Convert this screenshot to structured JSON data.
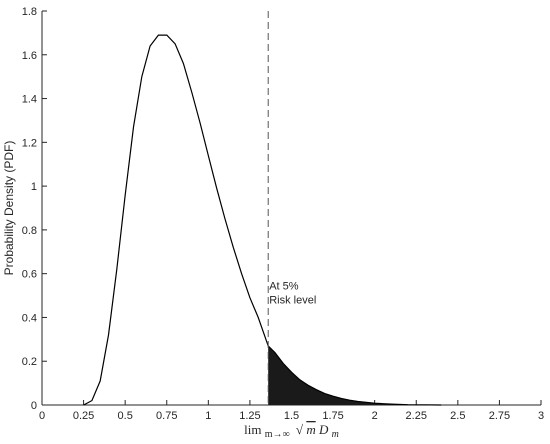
{
  "chart_data": {
    "type": "area",
    "title": "",
    "xlabel": "lim m→∞ √m D m",
    "xlabel_parts": {
      "lim": "lim",
      "sub": "m→∞",
      "sqrt": "√",
      "m": "m",
      "D": "D",
      "Dsub": "m"
    },
    "ylabel": "Probability Density (PDF)",
    "xlim": [
      0,
      3
    ],
    "ylim": [
      0,
      1.8
    ],
    "x_ticks": [
      "0",
      "0.25",
      "0.5",
      "0.75",
      "1",
      "1.25",
      "1.5",
      "1.75",
      "2",
      "2.25",
      "2.5",
      "2.75",
      "3"
    ],
    "y_ticks": [
      "0",
      "0.2",
      "0.4",
      "0.6",
      "0.8",
      "1",
      "1.2",
      "1.4",
      "1.6",
      "1.8"
    ],
    "grid": false,
    "series": [
      {
        "type": "line",
        "x": [
          0.3,
          0.35,
          0.4,
          0.45,
          0.5,
          0.55,
          0.6,
          0.65,
          0.7,
          0.75,
          0.8,
          0.85,
          0.9,
          0.95,
          1.0,
          1.05,
          1.1,
          1.15,
          1.2,
          1.25,
          1.3,
          1.36,
          1.4,
          1.45,
          1.5,
          1.55,
          1.6,
          1.65,
          1.7,
          1.75,
          1.8,
          1.85,
          1.9,
          2.0,
          2.1,
          2.2
        ],
        "y": [
          0.02,
          0.11,
          0.32,
          0.62,
          0.96,
          1.27,
          1.5,
          1.64,
          1.69,
          1.69,
          1.65,
          1.56,
          1.43,
          1.29,
          1.14,
          0.99,
          0.85,
          0.72,
          0.6,
          0.49,
          0.4,
          0.27,
          0.24,
          0.19,
          0.15,
          0.115,
          0.09,
          0.07,
          0.052,
          0.04,
          0.03,
          0.022,
          0.016,
          0.008,
          0.004,
          0.0015
        ]
      }
    ],
    "critical_value": 1.36,
    "shaded_region": {
      "from": 1.36,
      "to": 2.2,
      "fill": "#1a1a1a"
    },
    "annotation": {
      "lines": [
        "At 5%",
        "Risk level"
      ],
      "x": 1.36,
      "y": 0.5
    },
    "colors": {
      "curve": "#000000",
      "shade": "#1a1a1a",
      "axis": "#262626",
      "dashed": "#555555"
    }
  }
}
